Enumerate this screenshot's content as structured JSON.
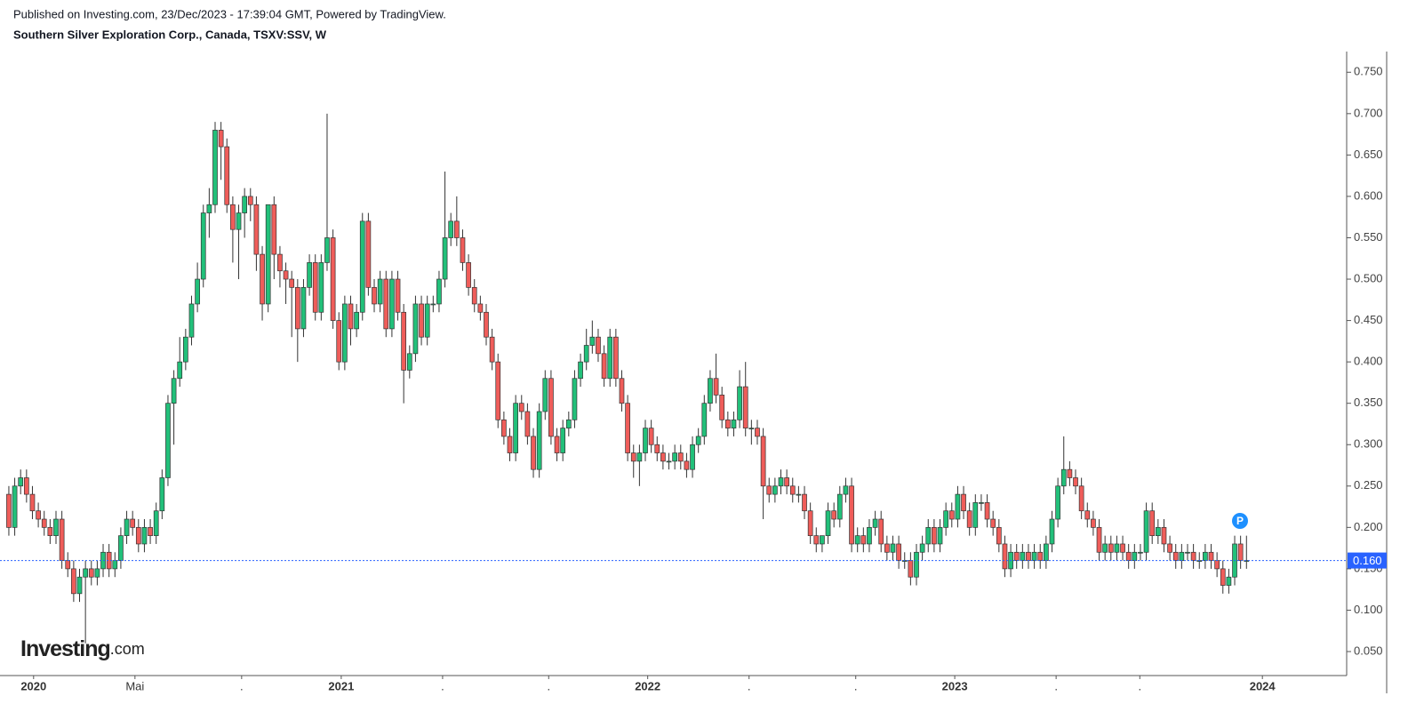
{
  "chart_data": {
    "type": "candlestick",
    "source": "Published on Investing.com, 23/Dec/2023 - 17:39:04 GMT, Powered by TradingView.",
    "title": "Southern Silver Exploration Corp., Canada, TSXV:SSV, W",
    "logo": "Investing",
    "logo_suffix": ".com",
    "marker_label": "P",
    "up_color": "#22c07a",
    "down_color": "#ef5d5a",
    "outline_color": "#333333",
    "last_price": {
      "value": 0.16,
      "label": "0.160"
    },
    "last_price_color": "#2962ff",
    "xlim": [
      -1.5,
      227
    ],
    "xticks": [
      {
        "value": 4.2,
        "label": "2020"
      },
      {
        "value": 21.4,
        "label": "Mai"
      },
      {
        "value": 39.5,
        "label": "."
      },
      {
        "value": 56.4,
        "label": "2021"
      },
      {
        "value": 73.6,
        "label": "."
      },
      {
        "value": 91.6,
        "label": "."
      },
      {
        "value": 108.4,
        "label": "2022"
      },
      {
        "value": 125.6,
        "label": "."
      },
      {
        "value": 143.7,
        "label": "."
      },
      {
        "value": 160.5,
        "label": "2023"
      },
      {
        "value": 177.7,
        "label": "."
      },
      {
        "value": 191.9,
        "label": "."
      },
      {
        "value": 212.7,
        "label": "2024"
      }
    ],
    "ylim": [
      0.021,
      0.775
    ],
    "yticks": [
      {
        "value": 0.05,
        "label": "0.050"
      },
      {
        "value": 0.1,
        "label": "0.100"
      },
      {
        "value": 0.15,
        "label": "0.150"
      },
      {
        "value": 0.2,
        "label": "0.200"
      },
      {
        "value": 0.25,
        "label": "0.250"
      },
      {
        "value": 0.3,
        "label": "0.300"
      },
      {
        "value": 0.35,
        "label": "0.350"
      },
      {
        "value": 0.4,
        "label": "0.400"
      },
      {
        "value": 0.45,
        "label": "0.450"
      },
      {
        "value": 0.5,
        "label": "0.500"
      },
      {
        "value": 0.55,
        "label": "0.550"
      },
      {
        "value": 0.6,
        "label": "0.600"
      },
      {
        "value": 0.65,
        "label": "0.650"
      },
      {
        "value": 0.7,
        "label": "0.700"
      },
      {
        "value": 0.75,
        "label": "0.750"
      }
    ],
    "open": [
      0.24,
      0.2,
      0.25,
      0.26,
      0.24,
      0.22,
      0.21,
      0.2,
      0.19,
      0.21,
      0.16,
      0.15,
      0.12,
      0.14,
      0.15,
      0.14,
      0.15,
      0.17,
      0.15,
      0.16,
      0.19,
      0.21,
      0.2,
      0.18,
      0.2,
      0.19,
      0.22,
      0.26,
      0.35,
      0.38,
      0.4,
      0.43,
      0.47,
      0.5,
      0.58,
      0.59,
      0.68,
      0.66,
      0.59,
      0.56,
      0.58,
      0.6,
      0.59,
      0.53,
      0.47,
      0.59,
      0.53,
      0.51,
      0.5,
      0.49,
      0.44,
      0.49,
      0.52,
      0.46,
      0.52,
      0.55,
      0.45,
      0.4,
      0.47,
      0.44,
      0.46,
      0.57,
      0.49,
      0.47,
      0.5,
      0.44,
      0.5,
      0.46,
      0.39,
      0.41,
      0.47,
      0.43,
      0.47,
      0.47,
      0.5,
      0.55,
      0.57,
      0.55,
      0.52,
      0.49,
      0.47,
      0.46,
      0.43,
      0.4,
      0.33,
      0.31,
      0.29,
      0.35,
      0.34,
      0.31,
      0.27,
      0.34,
      0.38,
      0.31,
      0.29,
      0.32,
      0.33,
      0.38,
      0.4,
      0.42,
      0.43,
      0.41,
      0.38,
      0.43,
      0.38,
      0.35,
      0.29,
      0.28,
      0.29,
      0.32,
      0.3,
      0.29,
      0.28,
      0.28,
      0.29,
      0.28,
      0.27,
      0.3,
      0.31,
      0.35,
      0.38,
      0.36,
      0.33,
      0.32,
      0.33,
      0.37,
      0.32,
      0.32,
      0.31,
      0.25,
      0.24,
      0.25,
      0.26,
      0.25,
      0.24,
      0.24,
      0.22,
      0.19,
      0.18,
      0.19,
      0.22,
      0.21,
      0.24,
      0.25,
      0.18,
      0.19,
      0.18,
      0.2,
      0.21,
      0.18,
      0.17,
      0.18,
      0.16,
      0.16,
      0.14,
      0.17,
      0.18,
      0.2,
      0.18,
      0.2,
      0.22,
      0.21,
      0.24,
      0.22,
      0.2,
      0.23,
      0.23,
      0.21,
      0.2,
      0.18,
      0.15,
      0.17,
      0.16,
      0.17,
      0.16,
      0.17,
      0.16,
      0.18,
      0.21,
      0.25,
      0.27,
      0.26,
      0.25,
      0.22,
      0.21,
      0.2,
      0.17,
      0.18,
      0.17,
      0.18,
      0.17,
      0.16,
      0.17,
      0.17,
      0.22,
      0.19,
      0.2,
      0.18,
      0.17,
      0.16,
      0.17,
      0.17,
      0.16,
      0.16,
      0.17,
      0.16,
      0.15,
      0.13,
      0.14,
      0.18,
      0.16
    ],
    "high": [
      0.25,
      0.26,
      0.27,
      0.27,
      0.25,
      0.23,
      0.22,
      0.21,
      0.22,
      0.22,
      0.17,
      0.16,
      0.15,
      0.16,
      0.16,
      0.16,
      0.18,
      0.18,
      0.17,
      0.2,
      0.22,
      0.22,
      0.21,
      0.21,
      0.21,
      0.23,
      0.27,
      0.36,
      0.39,
      0.43,
      0.44,
      0.48,
      0.52,
      0.59,
      0.61,
      0.69,
      0.69,
      0.67,
      0.6,
      0.59,
      0.61,
      0.61,
      0.6,
      0.54,
      0.59,
      0.6,
      0.54,
      0.52,
      0.51,
      0.5,
      0.5,
      0.53,
      0.53,
      0.53,
      0.7,
      0.56,
      0.46,
      0.48,
      0.48,
      0.47,
      0.58,
      0.58,
      0.5,
      0.51,
      0.51,
      0.51,
      0.51,
      0.47,
      0.42,
      0.48,
      0.48,
      0.48,
      0.48,
      0.51,
      0.63,
      0.58,
      0.6,
      0.56,
      0.53,
      0.5,
      0.48,
      0.47,
      0.44,
      0.41,
      0.34,
      0.32,
      0.36,
      0.36,
      0.35,
      0.32,
      0.35,
      0.39,
      0.39,
      0.32,
      0.33,
      0.34,
      0.39,
      0.41,
      0.44,
      0.45,
      0.44,
      0.42,
      0.44,
      0.44,
      0.39,
      0.36,
      0.3,
      0.3,
      0.33,
      0.33,
      0.31,
      0.3,
      0.29,
      0.3,
      0.3,
      0.29,
      0.31,
      0.32,
      0.36,
      0.39,
      0.41,
      0.37,
      0.34,
      0.34,
      0.39,
      0.4,
      0.33,
      0.33,
      0.32,
      0.26,
      0.26,
      0.27,
      0.27,
      0.26,
      0.25,
      0.25,
      0.23,
      0.2,
      0.19,
      0.23,
      0.23,
      0.25,
      0.26,
      0.26,
      0.2,
      0.2,
      0.21,
      0.22,
      0.22,
      0.19,
      0.19,
      0.19,
      0.17,
      0.17,
      0.18,
      0.19,
      0.21,
      0.21,
      0.21,
      0.23,
      0.23,
      0.25,
      0.25,
      0.23,
      0.24,
      0.24,
      0.24,
      0.22,
      0.21,
      0.19,
      0.18,
      0.18,
      0.18,
      0.18,
      0.18,
      0.18,
      0.19,
      0.22,
      0.26,
      0.31,
      0.28,
      0.27,
      0.26,
      0.23,
      0.22,
      0.21,
      0.19,
      0.19,
      0.19,
      0.19,
      0.18,
      0.18,
      0.18,
      0.23,
      0.23,
      0.21,
      0.21,
      0.19,
      0.18,
      0.18,
      0.18,
      0.18,
      0.17,
      0.18,
      0.18,
      0.17,
      0.16,
      0.15,
      0.19,
      0.19,
      0.19
    ],
    "low": [
      0.19,
      0.19,
      0.24,
      0.23,
      0.21,
      0.2,
      0.19,
      0.18,
      0.18,
      0.15,
      0.14,
      0.11,
      0.11,
      0.06,
      0.13,
      0.13,
      0.14,
      0.14,
      0.14,
      0.15,
      0.18,
      0.19,
      0.17,
      0.17,
      0.18,
      0.18,
      0.21,
      0.25,
      0.3,
      0.37,
      0.39,
      0.42,
      0.46,
      0.49,
      0.55,
      0.58,
      0.62,
      0.58,
      0.52,
      0.5,
      0.55,
      0.57,
      0.51,
      0.45,
      0.46,
      0.5,
      0.49,
      0.47,
      0.43,
      0.4,
      0.43,
      0.48,
      0.45,
      0.45,
      0.51,
      0.44,
      0.39,
      0.39,
      0.42,
      0.43,
      0.45,
      0.48,
      0.46,
      0.46,
      0.43,
      0.43,
      0.45,
      0.35,
      0.38,
      0.4,
      0.42,
      0.42,
      0.46,
      0.46,
      0.49,
      0.54,
      0.54,
      0.51,
      0.48,
      0.46,
      0.45,
      0.42,
      0.39,
      0.32,
      0.3,
      0.28,
      0.28,
      0.33,
      0.3,
      0.26,
      0.26,
      0.33,
      0.3,
      0.28,
      0.28,
      0.31,
      0.32,
      0.37,
      0.39,
      0.41,
      0.4,
      0.37,
      0.37,
      0.37,
      0.34,
      0.28,
      0.26,
      0.25,
      0.28,
      0.29,
      0.28,
      0.27,
      0.27,
      0.27,
      0.27,
      0.26,
      0.26,
      0.29,
      0.3,
      0.34,
      0.35,
      0.32,
      0.31,
      0.31,
      0.32,
      0.31,
      0.3,
      0.3,
      0.21,
      0.23,
      0.23,
      0.24,
      0.24,
      0.23,
      0.23,
      0.21,
      0.18,
      0.17,
      0.17,
      0.18,
      0.2,
      0.2,
      0.23,
      0.17,
      0.17,
      0.17,
      0.17,
      0.19,
      0.17,
      0.16,
      0.16,
      0.15,
      0.15,
      0.13,
      0.13,
      0.16,
      0.17,
      0.17,
      0.17,
      0.19,
      0.2,
      0.2,
      0.21,
      0.19,
      0.19,
      0.22,
      0.2,
      0.19,
      0.17,
      0.14,
      0.14,
      0.15,
      0.15,
      0.15,
      0.15,
      0.15,
      0.15,
      0.17,
      0.2,
      0.24,
      0.25,
      0.24,
      0.21,
      0.2,
      0.19,
      0.16,
      0.16,
      0.16,
      0.16,
      0.16,
      0.15,
      0.15,
      0.16,
      0.16,
      0.18,
      0.18,
      0.17,
      0.16,
      0.15,
      0.15,
      0.16,
      0.15,
      0.15,
      0.15,
      0.15,
      0.14,
      0.12,
      0.12,
      0.13,
      0.15,
      0.15
    ],
    "close": [
      0.2,
      0.25,
      0.26,
      0.24,
      0.22,
      0.21,
      0.2,
      0.19,
      0.21,
      0.16,
      0.15,
      0.12,
      0.14,
      0.15,
      0.14,
      0.15,
      0.17,
      0.15,
      0.16,
      0.19,
      0.21,
      0.2,
      0.18,
      0.2,
      0.19,
      0.22,
      0.26,
      0.35,
      0.38,
      0.4,
      0.43,
      0.47,
      0.5,
      0.58,
      0.59,
      0.68,
      0.66,
      0.59,
      0.56,
      0.58,
      0.6,
      0.59,
      0.53,
      0.47,
      0.59,
      0.53,
      0.51,
      0.5,
      0.49,
      0.44,
      0.49,
      0.52,
      0.46,
      0.52,
      0.55,
      0.45,
      0.4,
      0.47,
      0.44,
      0.46,
      0.57,
      0.49,
      0.47,
      0.5,
      0.44,
      0.5,
      0.46,
      0.39,
      0.41,
      0.47,
      0.43,
      0.47,
      0.47,
      0.5,
      0.55,
      0.57,
      0.55,
      0.52,
      0.49,
      0.47,
      0.46,
      0.43,
      0.4,
      0.33,
      0.31,
      0.29,
      0.35,
      0.34,
      0.31,
      0.27,
      0.34,
      0.38,
      0.31,
      0.29,
      0.32,
      0.33,
      0.38,
      0.4,
      0.42,
      0.43,
      0.41,
      0.38,
      0.43,
      0.38,
      0.35,
      0.29,
      0.28,
      0.29,
      0.32,
      0.3,
      0.29,
      0.28,
      0.28,
      0.29,
      0.28,
      0.27,
      0.3,
      0.31,
      0.35,
      0.38,
      0.36,
      0.33,
      0.32,
      0.33,
      0.37,
      0.32,
      0.32,
      0.31,
      0.25,
      0.24,
      0.25,
      0.26,
      0.25,
      0.24,
      0.24,
      0.22,
      0.19,
      0.18,
      0.19,
      0.22,
      0.21,
      0.24,
      0.25,
      0.18,
      0.19,
      0.18,
      0.2,
      0.21,
      0.18,
      0.17,
      0.18,
      0.16,
      0.16,
      0.14,
      0.17,
      0.18,
      0.2,
      0.18,
      0.2,
      0.22,
      0.21,
      0.24,
      0.22,
      0.2,
      0.23,
      0.23,
      0.21,
      0.2,
      0.18,
      0.15,
      0.17,
      0.16,
      0.17,
      0.16,
      0.17,
      0.16,
      0.18,
      0.21,
      0.25,
      0.27,
      0.26,
      0.25,
      0.22,
      0.21,
      0.2,
      0.17,
      0.18,
      0.17,
      0.18,
      0.17,
      0.16,
      0.17,
      0.17,
      0.22,
      0.19,
      0.2,
      0.18,
      0.17,
      0.16,
      0.17,
      0.17,
      0.16,
      0.16,
      0.17,
      0.16,
      0.15,
      0.13,
      0.14,
      0.18,
      0.16,
      0.16
    ]
  }
}
